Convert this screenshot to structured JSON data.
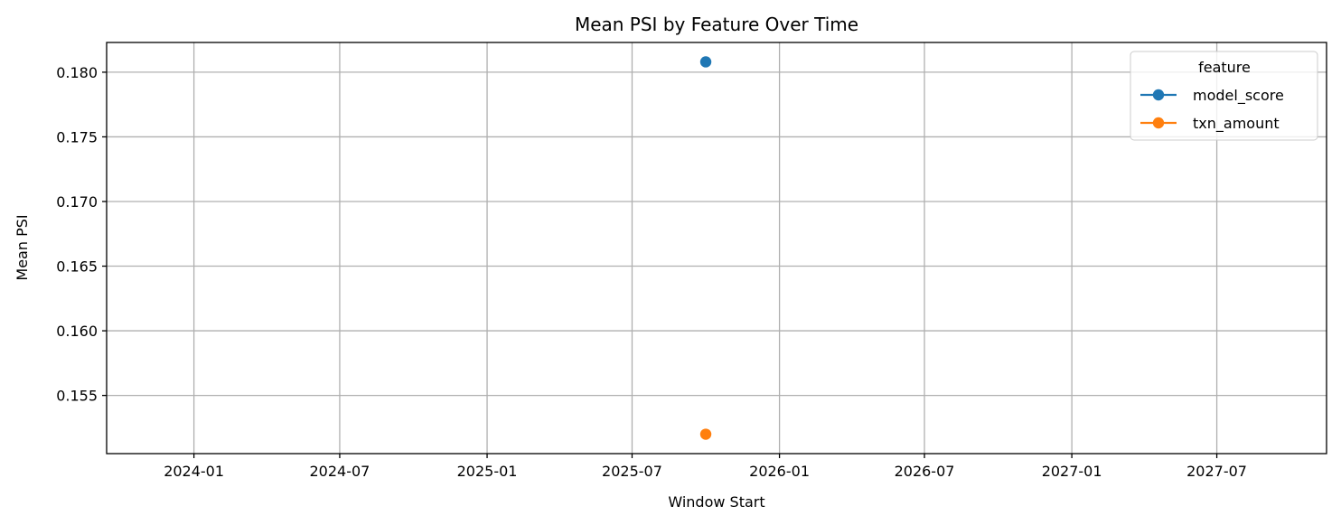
{
  "chart_data": {
    "type": "scatter",
    "title": "Mean PSI by Feature Over Time",
    "xlabel": "Window Start",
    "ylabel": "Mean PSI",
    "x_ticks": [
      "2024-01",
      "2024-07",
      "2025-01",
      "2025-07",
      "2026-01",
      "2026-07",
      "2027-01",
      "2027-07"
    ],
    "y_ticks": [
      "0.155",
      "0.160",
      "0.165",
      "0.170",
      "0.175",
      "0.180"
    ],
    "xlim": [
      "2023-09-14",
      "2027-11-15"
    ],
    "ylim": [
      0.1505,
      0.1823
    ],
    "grid": true,
    "legend": {
      "title": "feature",
      "placement": "top-right"
    },
    "series": [
      {
        "name": "model_score",
        "color": "#1f77b4",
        "points": [
          {
            "x": "2025-10-01",
            "y": 0.1808
          }
        ]
      },
      {
        "name": "txn_amount",
        "color": "#ff7f0e",
        "points": [
          {
            "x": "2025-10-01",
            "y": 0.152
          }
        ]
      }
    ]
  }
}
